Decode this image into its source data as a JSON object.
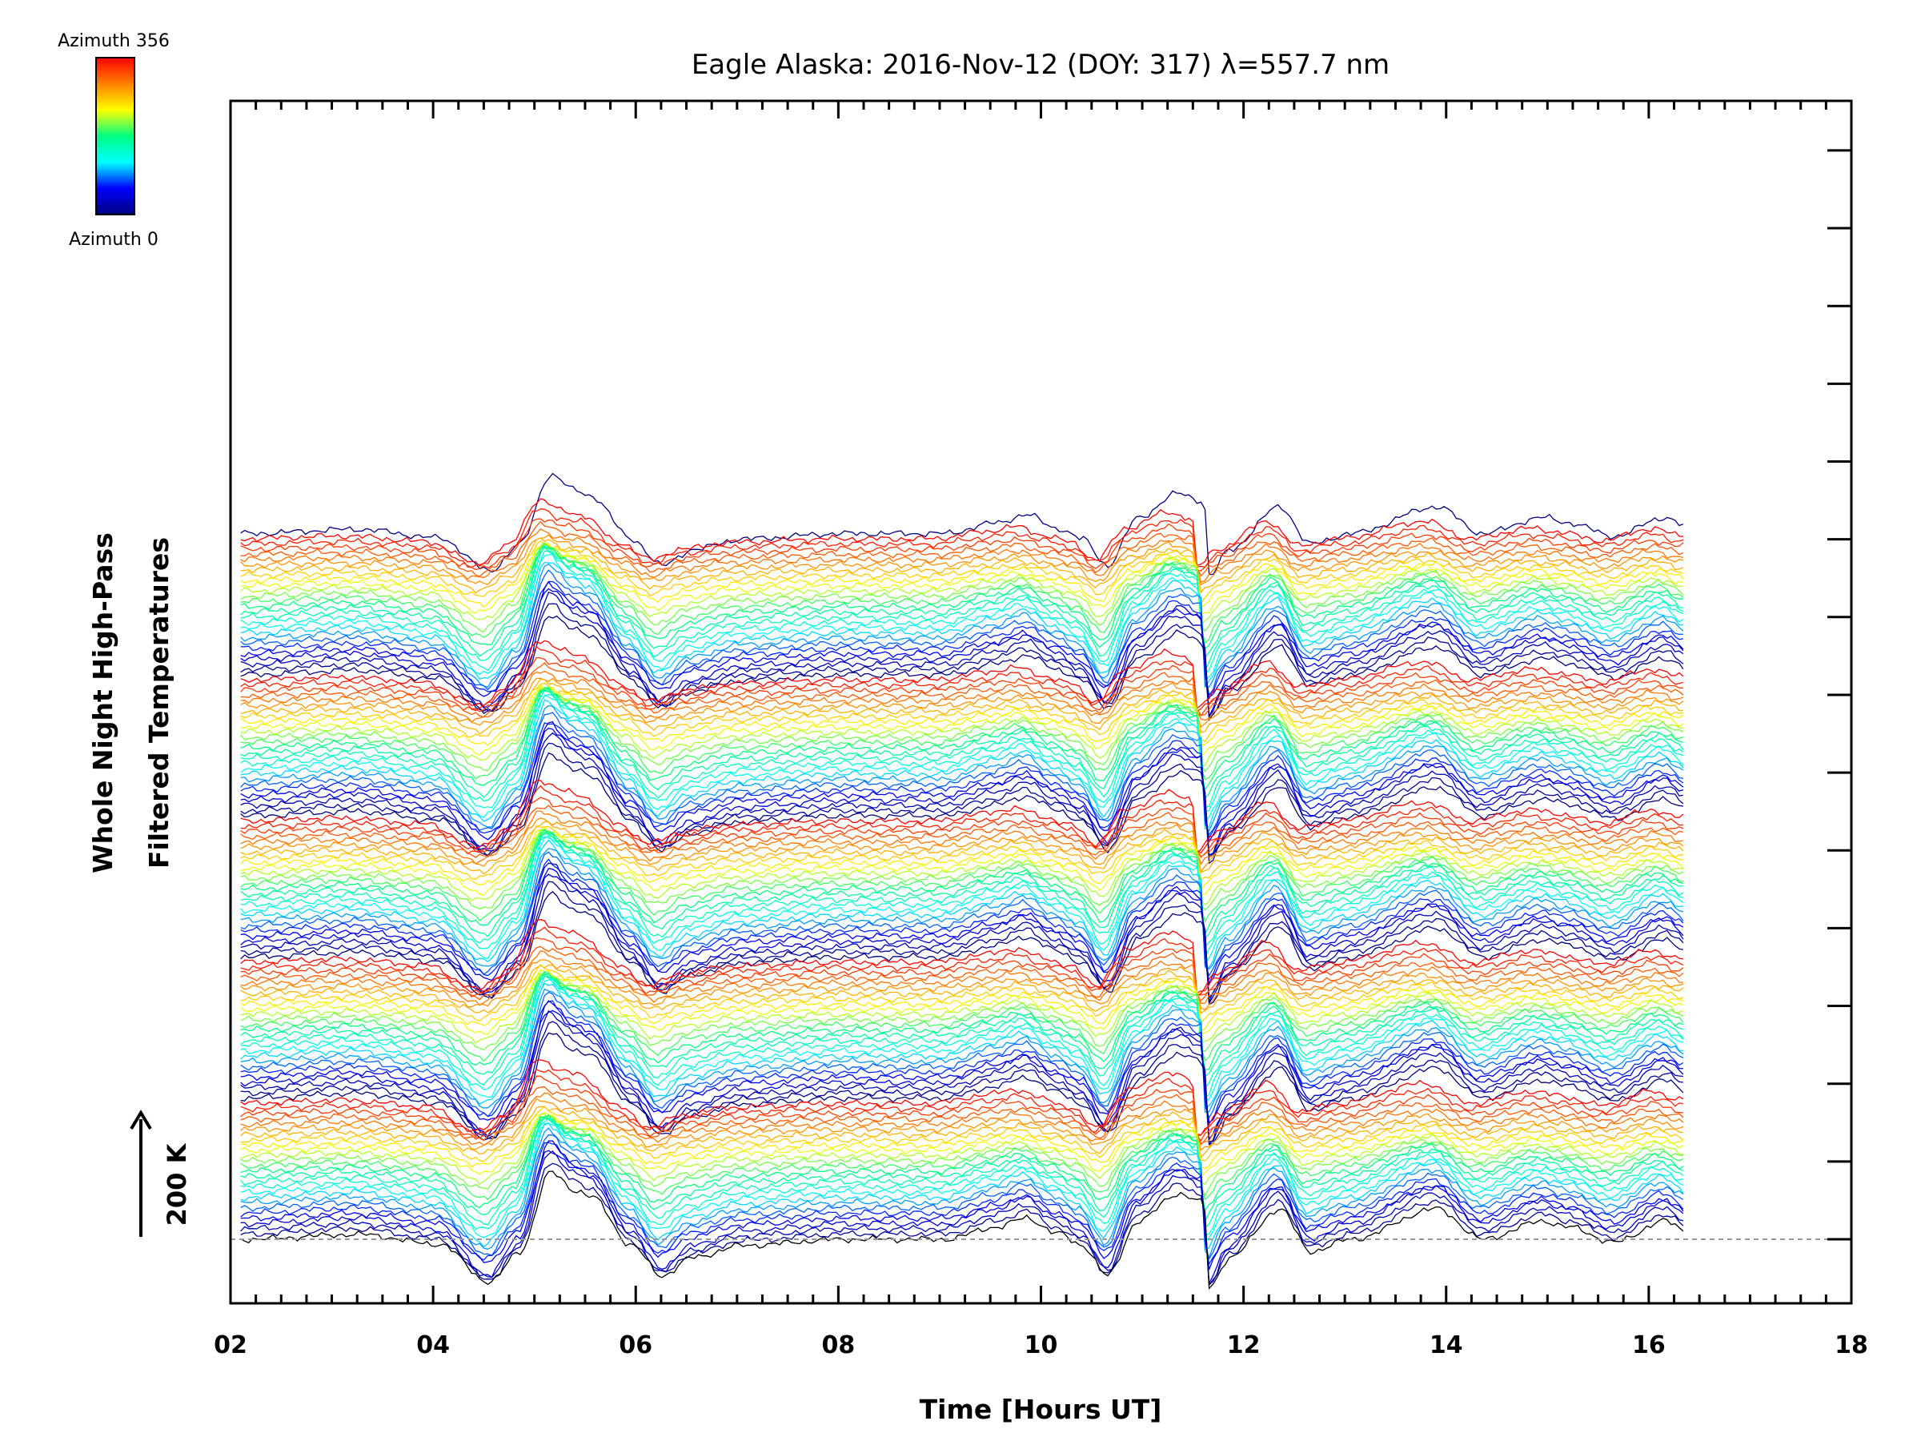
{
  "chart_data": {
    "type": "line",
    "title": "Eagle Alaska: 2016-Nov-12 (DOY: 317) λ=557.7 nm",
    "xlabel": "Time [Hours UT]",
    "ylabel_line1": "Whole Night High-Pass",
    "ylabel_line2": "Filtered Temperatures",
    "xlim": [
      2,
      18
    ],
    "x_ticks": [
      "02",
      "04",
      "06",
      "08",
      "10",
      "12",
      "14",
      "16",
      "18"
    ],
    "data_x_range": [
      2.1,
      16.35
    ],
    "n_traces": 136,
    "trace_offset_K": 10,
    "scale_bar": {
      "label": "200 K",
      "value_K": 200
    },
    "baseline": {
      "style": "dashed",
      "value_K": 0
    },
    "colorbar": {
      "top_label": "Azimuth 356",
      "bottom_label": "Azimuth 0",
      "azimuth_range": [
        0,
        356
      ],
      "colors": [
        "#000080",
        "#0000ff",
        "#00ffff",
        "#00ff80",
        "#ffff00",
        "#ff8000",
        "#ff0000"
      ]
    },
    "grid": false,
    "legend": "top-left colorbar",
    "common_profile": {
      "description_points_hours_K": [
        [
          2.1,
          0
        ],
        [
          3.2,
          8
        ],
        [
          4.0,
          -8
        ],
        [
          4.5,
          -70
        ],
        [
          4.8,
          -20
        ],
        [
          5.1,
          110
        ],
        [
          5.35,
          80
        ],
        [
          5.5,
          70
        ],
        [
          5.9,
          -10
        ],
        [
          6.2,
          -60
        ],
        [
          6.5,
          -30
        ],
        [
          7.0,
          -10
        ],
        [
          8.0,
          0
        ],
        [
          9.0,
          0
        ],
        [
          9.5,
          20
        ],
        [
          9.8,
          35
        ],
        [
          10.1,
          10
        ],
        [
          10.35,
          -10
        ],
        [
          10.6,
          -60
        ],
        [
          10.9,
          30
        ],
        [
          11.3,
          75
        ],
        [
          11.55,
          60
        ],
        [
          11.6,
          -80
        ],
        [
          11.8,
          -30
        ],
        [
          12.3,
          50
        ],
        [
          12.6,
          -20
        ],
        [
          13.0,
          0
        ],
        [
          13.85,
          50
        ],
        [
          14.3,
          0
        ],
        [
          14.9,
          30
        ],
        [
          15.15,
          20
        ],
        [
          15.6,
          -5
        ],
        [
          16.1,
          30
        ],
        [
          16.35,
          10
        ]
      ]
    }
  }
}
